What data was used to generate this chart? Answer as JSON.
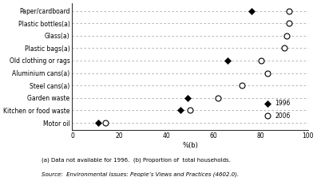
{
  "categories": [
    "Paper/cardboard",
    "Plastic bottles(a)",
    "Glass(a)",
    "Plastic bags(a)",
    "Old clothing or rags",
    "Aluminium cans(a)",
    "Steel cans(a)",
    "Garden waste",
    "Kitchen or food waste",
    "Motor oil"
  ],
  "values_1996": [
    76,
    null,
    null,
    null,
    66,
    null,
    null,
    49,
    46,
    11
  ],
  "values_2006": [
    92,
    92,
    91,
    90,
    80,
    83,
    72,
    62,
    50,
    14
  ],
  "xlabel": "%(b)",
  "xlim": [
    0,
    100
  ],
  "xticks": [
    0,
    20,
    40,
    60,
    80,
    100
  ],
  "note1": "(a) Data not available for 1996.  (b) Proportion of  total households.",
  "note2": "Source:  Environmental Issues: People’s Views and Practices (4602.0).",
  "legend_1996": "1996",
  "legend_2006": "2006",
  "color": "#000000",
  "background": "#ffffff",
  "fig_width": 3.97,
  "fig_height": 2.27,
  "dpi": 100
}
